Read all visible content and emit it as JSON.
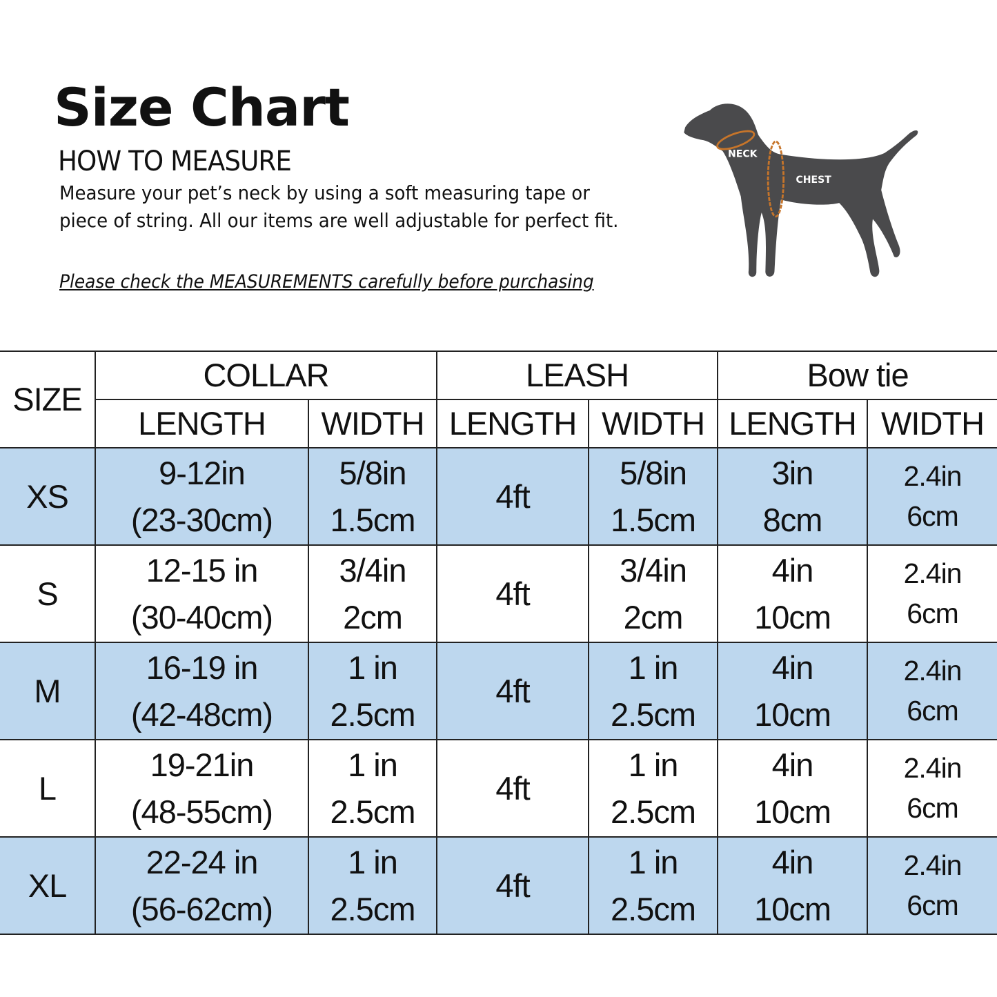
{
  "header": {
    "title": "Size Chart",
    "subtitle": "HOW TO MEASURE",
    "description": "Measure your pet’s neck by using a soft measuring tape or piece of string. All our items are well adjustable for perfect fit.",
    "note": "Please check the MEASUREMENTS carefully before purchasing"
  },
  "illustration": {
    "neck_label": "NECK",
    "chest_label": "CHEST",
    "body_color": "#4a4a4c",
    "tape_color": "#c7752a"
  },
  "colors": {
    "row_highlight": "#bdd7ee"
  },
  "table": {
    "size_header": "SIZE",
    "groups": [
      "COLLAR",
      "LEASH",
      "Bow tie"
    ],
    "subheaders": [
      "LENGTH",
      "WIDTH",
      "LENGTH",
      "WIDTH",
      "LENGTH",
      "WIDTH"
    ],
    "rows": [
      {
        "size": "XS",
        "collar_length": [
          "9-12in",
          "(23-30cm)"
        ],
        "collar_width": [
          "5/8in",
          "1.5cm"
        ],
        "leash_length": "4ft",
        "leash_width": [
          "5/8in",
          "1.5cm"
        ],
        "bowtie_length": [
          "3in",
          "8cm"
        ],
        "bowtie_width": [
          "2.4in",
          "6cm"
        ]
      },
      {
        "size": "S",
        "collar_length": [
          "12-15 in",
          "(30-40cm)"
        ],
        "collar_width": [
          "3/4in",
          "2cm"
        ],
        "leash_length": "4ft",
        "leash_width": [
          "3/4in",
          "2cm"
        ],
        "bowtie_length": [
          "4in",
          "10cm"
        ],
        "bowtie_width": [
          "2.4in",
          "6cm"
        ]
      },
      {
        "size": "M",
        "collar_length": [
          "16-19 in",
          "(42-48cm)"
        ],
        "collar_width": [
          "1 in",
          "2.5cm"
        ],
        "leash_length": "4ft",
        "leash_width": [
          "1 in",
          "2.5cm"
        ],
        "bowtie_length": [
          "4in",
          "10cm"
        ],
        "bowtie_width": [
          "2.4in",
          "6cm"
        ]
      },
      {
        "size": "L",
        "collar_length": [
          "19-21in",
          "(48-55cm)"
        ],
        "collar_width": [
          "1 in",
          "2.5cm"
        ],
        "leash_length": "4ft",
        "leash_width": [
          "1 in",
          "2.5cm"
        ],
        "bowtie_length": [
          "4in",
          "10cm"
        ],
        "bowtie_width": [
          "2.4in",
          "6cm"
        ]
      },
      {
        "size": "XL",
        "collar_length": [
          "22-24 in",
          "(56-62cm)"
        ],
        "collar_width": [
          "1 in",
          "2.5cm"
        ],
        "leash_length": "4ft",
        "leash_width": [
          "1 in",
          "2.5cm"
        ],
        "bowtie_length": [
          "4in",
          "10cm"
        ],
        "bowtie_width": [
          "2.4in",
          "6cm"
        ]
      }
    ]
  }
}
